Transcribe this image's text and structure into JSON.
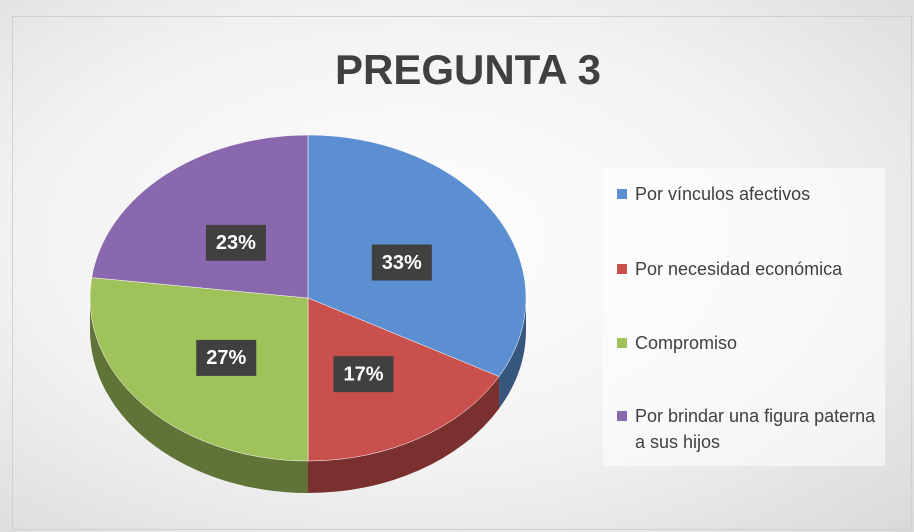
{
  "chart_data": {
    "type": "pie",
    "title": "PREGUNTA 3",
    "categories": [
      "Por vínculos afectivos",
      "Por necesidad económica",
      "Compromiso",
      "Por brindar una figura paterna a sus hijos"
    ],
    "values": [
      33,
      17,
      27,
      23
    ],
    "value_labels": [
      "33%",
      "17%",
      "27%",
      "23%"
    ],
    "colors": [
      "#5b8fd2",
      "#c9504d",
      "#9fc25a",
      "#8a68ad"
    ],
    "legend": "right"
  }
}
